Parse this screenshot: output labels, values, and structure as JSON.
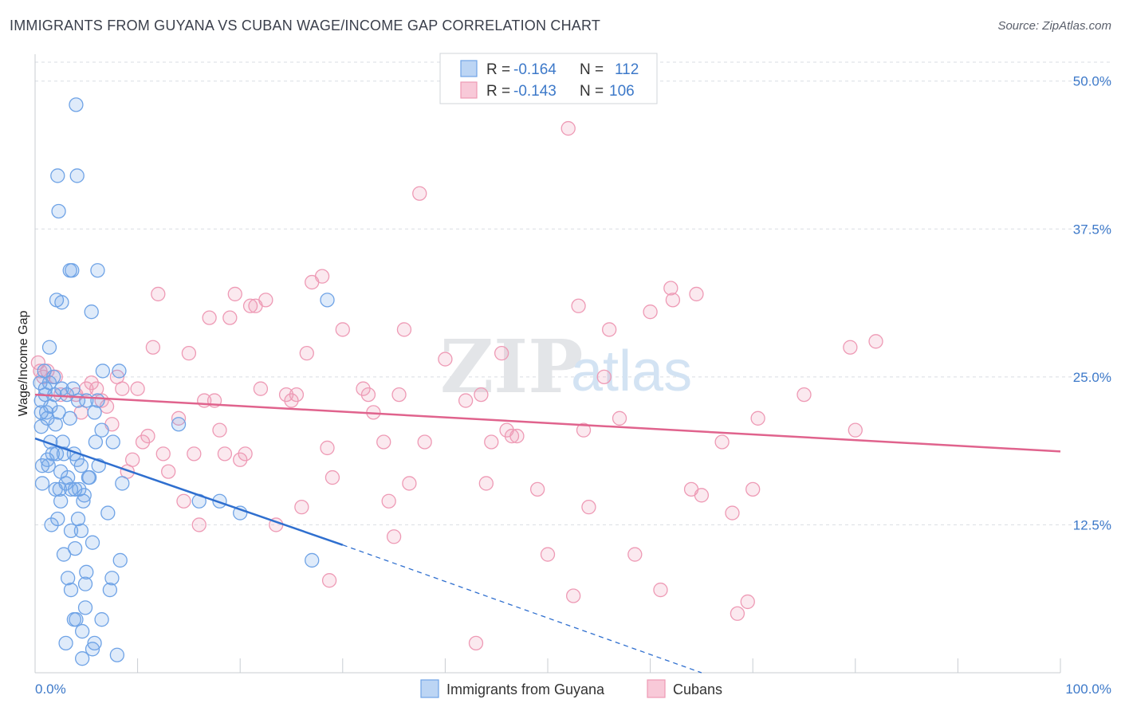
{
  "title": "IMMIGRANTS FROM GUYANA VS CUBAN WAGE/INCOME GAP CORRELATION CHART",
  "source": "Source: ZipAtlas.com",
  "watermark": {
    "zip": "ZIP",
    "atlas": "atlas"
  },
  "colors": {
    "blue": "#6fa3e6",
    "blue_line": "#2f6fcf",
    "pink": "#ee9ab5",
    "pink_line": "#e0638d",
    "axis_text": "#3d79c9",
    "grid": "#d9dde3"
  },
  "legend": {
    "rows": [
      {
        "r_label": "R = ",
        "r_value": "-0.164",
        "n_label": "N = ",
        "n_value": "112"
      },
      {
        "r_label": "R = ",
        "r_value": "-0.143",
        "n_label": "N = ",
        "n_value": "106"
      }
    ]
  },
  "bottom_legend": [
    "Immigrants from Guyana",
    "Cubans"
  ],
  "chart_data": {
    "type": "scatter",
    "title": "IMMIGRANTS FROM GUYANA VS CUBAN WAGE/INCOME GAP CORRELATION CHART",
    "xlabel": "",
    "ylabel": "Wage/Income Gap",
    "xlim": [
      0,
      100
    ],
    "ylim": [
      0,
      52
    ],
    "x_tick_labels": [
      "0.0%",
      "100.0%"
    ],
    "y_ticks": [
      12.5,
      25.0,
      37.5,
      50.0
    ],
    "y_tick_labels": [
      "12.5%",
      "25.0%",
      "37.5%",
      "50.0%"
    ],
    "grid": true,
    "series": [
      {
        "name": "Immigrants from Guyana",
        "r": -0.164,
        "n": 112,
        "trend": {
          "x": [
            0,
            30
          ],
          "y": [
            19.8,
            10.8
          ],
          "dashed_to": [
            65,
            0
          ]
        },
        "points": [
          [
            0.5,
            24.5
          ],
          [
            0.6,
            23.0
          ],
          [
            0.6,
            22.0
          ],
          [
            0.6,
            20.8
          ],
          [
            0.7,
            17.5
          ],
          [
            0.7,
            16.0
          ],
          [
            0.9,
            25.5
          ],
          [
            1.0,
            24.0
          ],
          [
            1.0,
            23.5
          ],
          [
            1.1,
            22.0
          ],
          [
            1.2,
            21.5
          ],
          [
            1.2,
            18.0
          ],
          [
            1.3,
            17.5
          ],
          [
            1.4,
            27.5
          ],
          [
            1.4,
            24.5
          ],
          [
            1.5,
            22.5
          ],
          [
            1.5,
            19.5
          ],
          [
            1.6,
            12.5
          ],
          [
            1.7,
            18.5
          ],
          [
            1.8,
            25.0
          ],
          [
            1.9,
            23.5
          ],
          [
            2.0,
            21.0
          ],
          [
            2.0,
            15.5
          ],
          [
            2.1,
            31.5
          ],
          [
            2.1,
            18.5
          ],
          [
            2.2,
            13.0
          ],
          [
            2.2,
            42.0
          ],
          [
            2.3,
            39.0
          ],
          [
            2.3,
            22.0
          ],
          [
            2.4,
            15.5
          ],
          [
            2.5,
            17.0
          ],
          [
            2.5,
            14.5
          ],
          [
            2.6,
            31.3
          ],
          [
            2.6,
            24.0
          ],
          [
            2.7,
            19.5
          ],
          [
            2.8,
            18.5
          ],
          [
            2.8,
            10.0
          ],
          [
            3.0,
            16.0
          ],
          [
            3.0,
            2.5
          ],
          [
            3.1,
            23.5
          ],
          [
            3.2,
            16.5
          ],
          [
            3.2,
            8.0
          ],
          [
            3.4,
            34.0
          ],
          [
            3.4,
            21.5
          ],
          [
            3.5,
            15.5
          ],
          [
            3.5,
            12.0
          ],
          [
            3.5,
            7.0
          ],
          [
            3.6,
            34.0
          ],
          [
            3.7,
            24.0
          ],
          [
            3.8,
            18.5
          ],
          [
            3.8,
            4.5
          ],
          [
            3.9,
            15.5
          ],
          [
            3.9,
            10.5
          ],
          [
            4.0,
            48.0
          ],
          [
            4.0,
            4.5
          ],
          [
            4.1,
            18.0
          ],
          [
            4.1,
            42.0
          ],
          [
            4.2,
            23.0
          ],
          [
            4.2,
            13.0
          ],
          [
            4.3,
            15.5
          ],
          [
            4.5,
            12.0
          ],
          [
            4.5,
            17.5
          ],
          [
            4.6,
            3.5
          ],
          [
            4.6,
            1.2
          ],
          [
            4.7,
            14.5
          ],
          [
            4.8,
            15.0
          ],
          [
            4.9,
            5.5
          ],
          [
            4.9,
            7.5
          ],
          [
            5.0,
            23.0
          ],
          [
            5.0,
            8.5
          ],
          [
            5.2,
            16.5
          ],
          [
            5.3,
            16.5
          ],
          [
            5.5,
            30.5
          ],
          [
            5.6,
            11.0
          ],
          [
            5.6,
            2.0
          ],
          [
            5.8,
            2.5
          ],
          [
            5.8,
            22.0
          ],
          [
            5.9,
            19.5
          ],
          [
            6.1,
            34.0
          ],
          [
            6.1,
            23.0
          ],
          [
            6.2,
            17.5
          ],
          [
            6.5,
            4.5
          ],
          [
            6.5,
            20.5
          ],
          [
            6.6,
            25.5
          ],
          [
            7.1,
            13.5
          ],
          [
            7.3,
            7.0
          ],
          [
            7.5,
            8.0
          ],
          [
            7.6,
            19.5
          ],
          [
            8.0,
            1.5
          ],
          [
            8.2,
            25.5
          ],
          [
            8.3,
            9.5
          ],
          [
            8.5,
            16.0
          ],
          [
            14.0,
            21.0
          ],
          [
            16.0,
            14.5
          ],
          [
            18.0,
            14.5
          ],
          [
            20.0,
            13.5
          ],
          [
            28.5,
            31.5
          ],
          [
            27.0,
            9.5
          ]
        ]
      },
      {
        "name": "Cubans",
        "r": -0.143,
        "n": 106,
        "trend": {
          "x": [
            0,
            100
          ],
          "y": [
            23.5,
            18.7
          ]
        },
        "points": [
          [
            0.3,
            26.2
          ],
          [
            0.5,
            25.5
          ],
          [
            0.8,
            25.0
          ],
          [
            1.2,
            25.5
          ],
          [
            2.0,
            25.0
          ],
          [
            2.5,
            23.5
          ],
          [
            4.0,
            23.5
          ],
          [
            4.5,
            22.0
          ],
          [
            5.0,
            24.0
          ],
          [
            5.5,
            24.5
          ],
          [
            6.0,
            24.0
          ],
          [
            6.5,
            23.0
          ],
          [
            7.0,
            22.5
          ],
          [
            7.5,
            21.0
          ],
          [
            8.0,
            25.0
          ],
          [
            8.5,
            24.0
          ],
          [
            9.0,
            17.0
          ],
          [
            9.5,
            18.0
          ],
          [
            10.0,
            24.0
          ],
          [
            10.5,
            19.5
          ],
          [
            11.0,
            20.0
          ],
          [
            11.5,
            27.5
          ],
          [
            12.0,
            32.0
          ],
          [
            12.5,
            18.5
          ],
          [
            13.0,
            17.0
          ],
          [
            14.0,
            21.5
          ],
          [
            14.5,
            14.5
          ],
          [
            15.0,
            27.0
          ],
          [
            15.5,
            18.5
          ],
          [
            16.0,
            12.5
          ],
          [
            16.5,
            23.0
          ],
          [
            17.0,
            30.0
          ],
          [
            17.5,
            23.0
          ],
          [
            18.0,
            20.5
          ],
          [
            18.5,
            18.5
          ],
          [
            19.0,
            30.0
          ],
          [
            19.5,
            32.0
          ],
          [
            20.0,
            18.0
          ],
          [
            20.5,
            18.5
          ],
          [
            21.0,
            31.0
          ],
          [
            21.5,
            31.0
          ],
          [
            22.0,
            24.0
          ],
          [
            22.5,
            31.5
          ],
          [
            23.5,
            12.5
          ],
          [
            24.5,
            23.5
          ],
          [
            25.0,
            23.0
          ],
          [
            25.5,
            23.5
          ],
          [
            26.0,
            14.0
          ],
          [
            26.5,
            27.0
          ],
          [
            27.0,
            33.0
          ],
          [
            28.0,
            33.5
          ],
          [
            28.5,
            19.0
          ],
          [
            28.7,
            7.8
          ],
          [
            29.0,
            16.5
          ],
          [
            30.0,
            29.0
          ],
          [
            32.0,
            24.0
          ],
          [
            32.5,
            23.5
          ],
          [
            33.0,
            22.0
          ],
          [
            34.0,
            19.5
          ],
          [
            34.5,
            14.5
          ],
          [
            35.0,
            11.5
          ],
          [
            35.5,
            23.5
          ],
          [
            36.0,
            29.0
          ],
          [
            36.5,
            16.0
          ],
          [
            37.5,
            40.5
          ],
          [
            38.0,
            19.5
          ],
          [
            40.0,
            26.5
          ],
          [
            42.0,
            23.0
          ],
          [
            43.0,
            2.5
          ],
          [
            43.5,
            23.5
          ],
          [
            44.0,
            16.0
          ],
          [
            44.5,
            19.5
          ],
          [
            45.5,
            27.0
          ],
          [
            46.0,
            20.5
          ],
          [
            46.5,
            20.0
          ],
          [
            47.0,
            20.0
          ],
          [
            49.0,
            15.5
          ],
          [
            50.0,
            10.0
          ],
          [
            52.0,
            46.0
          ],
          [
            52.5,
            6.5
          ],
          [
            53.0,
            31.0
          ],
          [
            53.5,
            20.5
          ],
          [
            54.0,
            14.0
          ],
          [
            55.5,
            25.0
          ],
          [
            56.0,
            29.0
          ],
          [
            57.0,
            21.5
          ],
          [
            58.5,
            10.0
          ],
          [
            60.0,
            30.5
          ],
          [
            61.0,
            7.0
          ],
          [
            62.0,
            32.5
          ],
          [
            62.2,
            31.5
          ],
          [
            64.0,
            15.5
          ],
          [
            64.5,
            32.0
          ],
          [
            65.0,
            15.0
          ],
          [
            67.0,
            19.5
          ],
          [
            68.0,
            13.5
          ],
          [
            68.5,
            5.0
          ],
          [
            69.5,
            6.0
          ],
          [
            70.0,
            15.5
          ],
          [
            70.5,
            21.5
          ],
          [
            75.0,
            23.5
          ],
          [
            79.5,
            27.5
          ],
          [
            80.0,
            20.5
          ],
          [
            82.0,
            28.0
          ]
        ]
      }
    ]
  }
}
